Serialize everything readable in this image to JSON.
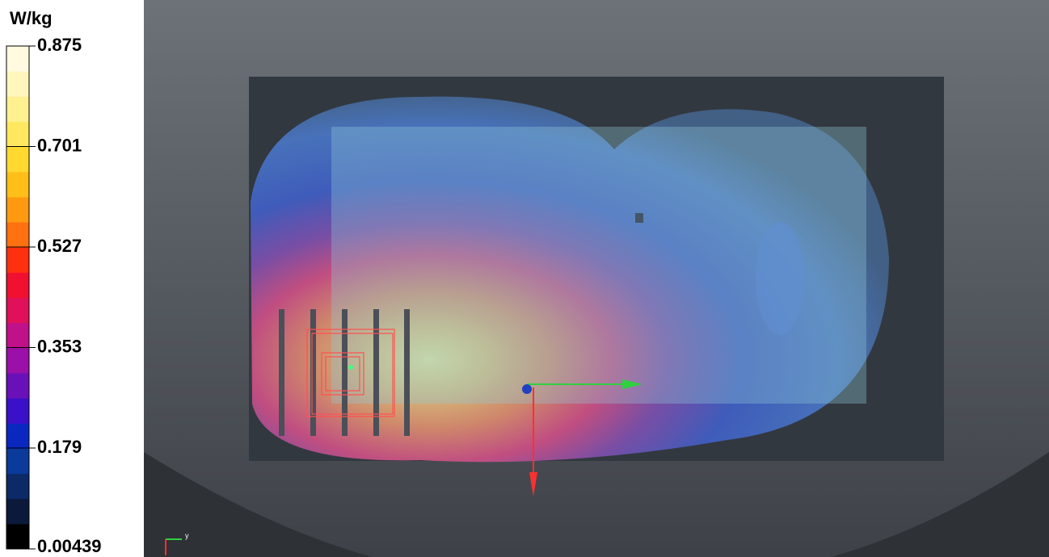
{
  "colorbar": {
    "unit": "W/kg",
    "lim": [
      0.00439,
      0.875
    ],
    "ticks": [
      0.875,
      0.701,
      0.527,
      0.353,
      0.179,
      0.00439
    ],
    "colors": [
      "#000000",
      "#0b1a3a",
      "#0c2a66",
      "#0a3a9a",
      "#0a28c0",
      "#3a10c8",
      "#6a10b8",
      "#9a10a8",
      "#c0108a",
      "#e0105a",
      "#f01030",
      "#ff3010",
      "#ff7010",
      "#ff9a10",
      "#ffbe18",
      "#ffd830",
      "#ffe860",
      "#fff090",
      "#fff6bc",
      "#fffae0"
    ]
  },
  "view": {
    "axis_label": "y"
  }
}
